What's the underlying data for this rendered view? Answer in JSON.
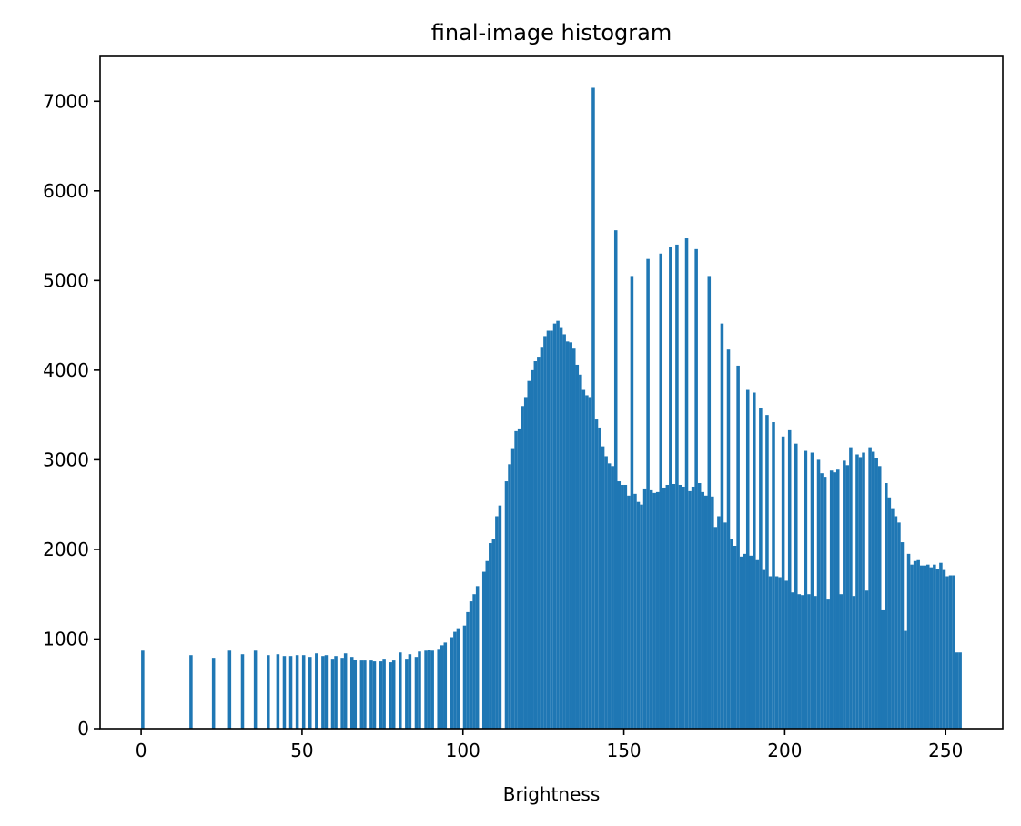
{
  "chart_data": {
    "type": "histogram",
    "title": "final-image histogram",
    "x_label": "Brightness",
    "color": "#1f77b4",
    "bins": [
      0,
      1,
      2,
      3,
      4,
      5,
      6,
      7,
      8,
      9,
      10,
      11,
      12,
      13,
      14,
      15,
      16,
      17,
      18,
      19,
      20,
      21,
      22,
      23,
      24,
      25,
      26,
      27,
      28,
      29,
      30,
      31,
      32,
      33,
      34,
      35,
      36,
      37,
      38,
      39,
      40,
      41,
      42,
      43,
      44,
      45,
      46,
      47,
      48,
      49,
      50,
      51,
      52,
      53,
      54,
      55,
      56,
      57,
      58,
      59,
      60,
      61,
      62,
      63,
      64,
      65,
      66,
      67,
      68,
      69,
      70,
      71,
      72,
      73,
      74,
      75,
      76,
      77,
      78,
      79,
      80,
      81,
      82,
      83,
      84,
      85,
      86,
      87,
      88,
      89,
      90,
      91,
      92,
      93,
      94,
      95,
      96,
      97,
      98,
      99,
      100,
      101,
      102,
      103,
      104,
      105,
      106,
      107,
      108,
      109,
      110,
      111,
      112,
      113,
      114,
      115,
      116,
      117,
      118,
      119,
      120,
      121,
      122,
      123,
      124,
      125,
      126,
      127,
      128,
      129,
      130,
      131,
      132,
      133,
      134,
      135,
      136,
      137,
      138,
      139,
      140,
      141,
      142,
      143,
      144,
      145,
      146,
      147,
      148,
      149,
      150,
      151,
      152,
      153,
      154,
      155,
      156,
      157,
      158,
      159,
      160,
      161,
      162,
      163,
      164,
      165,
      166,
      167,
      168,
      169,
      170,
      171,
      172,
      173,
      174,
      175,
      176,
      177,
      178,
      179,
      180,
      181,
      182,
      183,
      184,
      185,
      186,
      187,
      188,
      189,
      190,
      191,
      192,
      193,
      194,
      195,
      196,
      197,
      198,
      199,
      200,
      201,
      202,
      203,
      204,
      205,
      206,
      207,
      208,
      209,
      210,
      211,
      212,
      213,
      214,
      215,
      216,
      217,
      218,
      219,
      220,
      221,
      222,
      223,
      224,
      225,
      226,
      227,
      228,
      229,
      230,
      231,
      232,
      233,
      234,
      235,
      236,
      237,
      238,
      239,
      240,
      241,
      242,
      243,
      244,
      245,
      246,
      247,
      248,
      249,
      250,
      251,
      252,
      253,
      254,
      255
    ],
    "values": [
      870,
      0,
      0,
      0,
      0,
      0,
      0,
      0,
      0,
      0,
      0,
      0,
      0,
      0,
      0,
      820,
      0,
      0,
      0,
      0,
      0,
      0,
      790,
      0,
      0,
      0,
      0,
      870,
      0,
      0,
      0,
      830,
      0,
      0,
      0,
      870,
      0,
      0,
      0,
      820,
      0,
      0,
      830,
      0,
      810,
      0,
      810,
      0,
      820,
      0,
      820,
      0,
      800,
      0,
      840,
      0,
      810,
      820,
      0,
      780,
      810,
      0,
      790,
      840,
      0,
      800,
      770,
      0,
      760,
      760,
      0,
      760,
      750,
      0,
      750,
      780,
      0,
      740,
      760,
      0,
      850,
      0,
      780,
      830,
      0,
      800,
      860,
      0,
      870,
      880,
      870,
      0,
      890,
      930,
      960,
      0,
      1020,
      1080,
      1120,
      0,
      1150,
      1300,
      1420,
      1500,
      1590,
      0,
      1750,
      1870,
      2070,
      2120,
      2370,
      2490,
      0,
      2760,
      2950,
      3120,
      3320,
      3340,
      3600,
      3700,
      3880,
      4000,
      4100,
      4150,
      4260,
      4380,
      4440,
      4440,
      4520,
      4550,
      4470,
      4400,
      4320,
      4310,
      4240,
      4060,
      3950,
      3780,
      3720,
      3700,
      7150,
      3450,
      3360,
      3150,
      3040,
      2960,
      2930,
      5560,
      2760,
      2720,
      2720,
      2600,
      5050,
      2620,
      2530,
      2500,
      2680,
      5240,
      2660,
      2630,
      2640,
      5300,
      2690,
      2720,
      5370,
      2730,
      5400,
      2720,
      2700,
      5470,
      2650,
      2700,
      5350,
      2740,
      2640,
      2600,
      5050,
      2590,
      2250,
      2370,
      4520,
      2300,
      4230,
      2120,
      2040,
      4050,
      1920,
      1950,
      3780,
      1930,
      3750,
      1880,
      3580,
      1770,
      3500,
      1700,
      3420,
      1700,
      1690,
      3260,
      1650,
      3330,
      1520,
      3180,
      1500,
      1490,
      3100,
      1500,
      3080,
      1480,
      3000,
      2850,
      2810,
      1440,
      2880,
      2860,
      2890,
      1500,
      2990,
      2940,
      3140,
      1480,
      3060,
      3030,
      3080,
      1540,
      3140,
      3090,
      3020,
      2930,
      1320,
      2740,
      2580,
      2460,
      2370,
      2300,
      2080,
      1090,
      1950,
      1830,
      1870,
      1880,
      1820,
      1820,
      1830,
      1800,
      1830,
      1780,
      1850,
      1770,
      1700,
      1710,
      1710,
      850,
      850
    ],
    "xlim": [
      -12.75,
      267.75
    ],
    "xticks": [
      0,
      50,
      100,
      150,
      200,
      250
    ],
    "ylim": [
      0,
      7500
    ],
    "yticks": [
      0,
      1000,
      2000,
      3000,
      4000,
      5000,
      6000,
      7000
    ]
  }
}
